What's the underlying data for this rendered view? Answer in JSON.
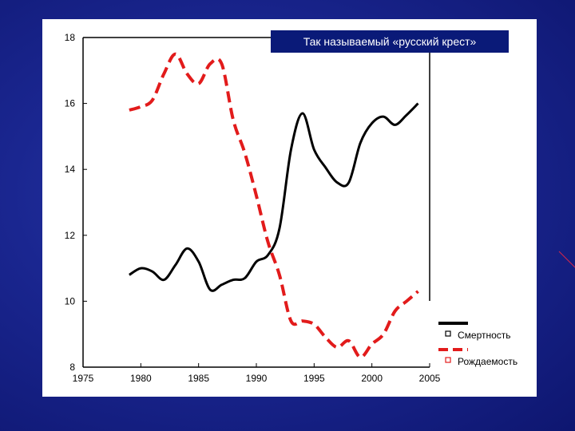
{
  "colors": {
    "background": "#1a2690",
    "panel": "#ffffff",
    "title_box": "#0a1a78",
    "mortality": "#000000",
    "birth": "#e21b1b"
  },
  "chart_data": {
    "type": "line",
    "title": "Так называемый «русский крест»",
    "xlabel": "",
    "ylabel": "",
    "xlim": [
      1975,
      2005
    ],
    "ylim": [
      8,
      18
    ],
    "x_ticks": [
      "1975",
      "1980",
      "1985",
      "1990",
      "1995",
      "2000",
      "2005"
    ],
    "y_ticks": [
      "8",
      "10",
      "12",
      "14",
      "16",
      "18"
    ],
    "grid": false,
    "legend_position": "bottom-right",
    "series": [
      {
        "name": "Смертность",
        "color": "#000000",
        "style": "solid",
        "x": [
          1979,
          1980,
          1981,
          1982,
          1983,
          1984,
          1985,
          1986,
          1987,
          1988,
          1989,
          1990,
          1991,
          1992,
          1993,
          1994,
          1995,
          1996,
          1997,
          1998,
          1999,
          2000,
          2001,
          2002,
          2003,
          2004
        ],
        "values": [
          10.8,
          11.0,
          10.9,
          10.65,
          11.1,
          11.6,
          11.2,
          10.35,
          10.5,
          10.65,
          10.7,
          11.2,
          11.4,
          12.2,
          14.6,
          15.7,
          14.6,
          14.05,
          13.6,
          13.6,
          14.8,
          15.4,
          15.6,
          15.35,
          15.65,
          16.0
        ]
      },
      {
        "name": "Рождаемость",
        "color": "#e21b1b",
        "style": "dashed",
        "x": [
          1979,
          1980,
          1981,
          1982,
          1983,
          1984,
          1985,
          1986,
          1987,
          1988,
          1989,
          1990,
          1991,
          1992,
          1993,
          1994,
          1995,
          1996,
          1997,
          1998,
          1999,
          2000,
          2001,
          2002,
          2003,
          2004
        ],
        "values": [
          15.8,
          15.9,
          16.1,
          16.9,
          17.5,
          16.9,
          16.6,
          17.2,
          17.2,
          15.5,
          14.5,
          13.2,
          11.8,
          10.8,
          9.4,
          9.4,
          9.3,
          8.9,
          8.6,
          8.8,
          8.3,
          8.7,
          9.0,
          9.7,
          10.0,
          10.3
        ]
      }
    ]
  }
}
